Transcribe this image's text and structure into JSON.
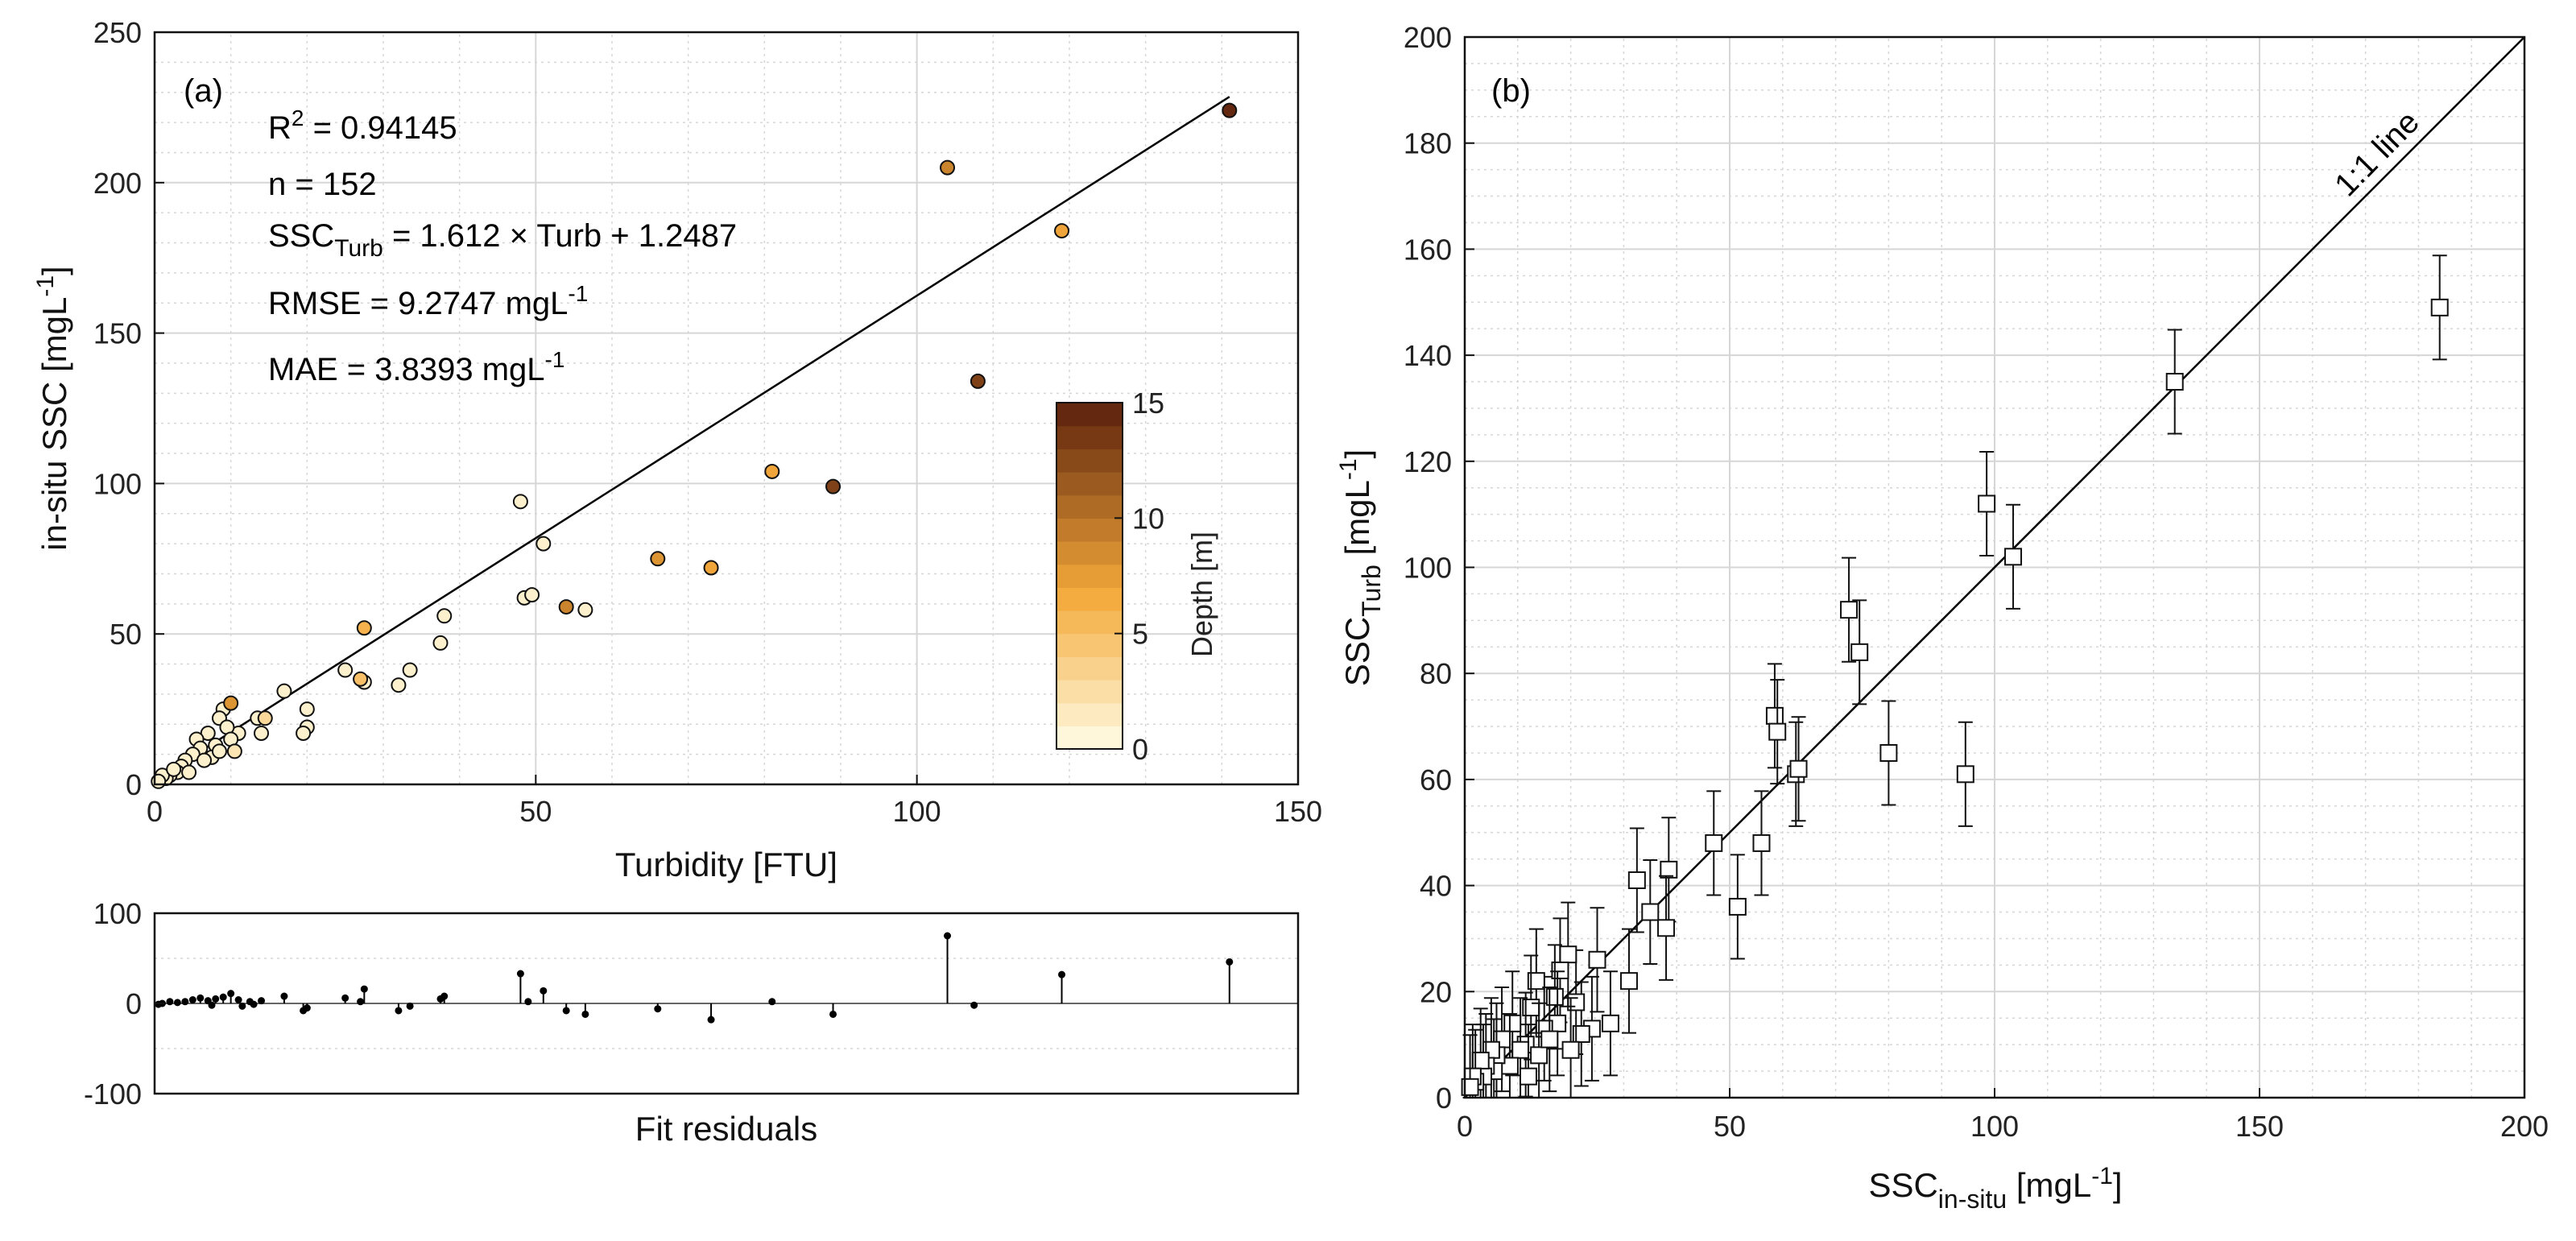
{
  "colors": {
    "depth_low": "#fffde6",
    "depth_mid": "#f4a93a",
    "depth_high": "#5a200c",
    "grid": "#d6d6d6"
  },
  "chart_data": [
    {
      "panel": "(a)",
      "type": "scatter",
      "xlabel": "Turbidity [FTU]",
      "ylabel": "in-situ SSC [mgL⁻¹]",
      "xlim": [
        0,
        150
      ],
      "ylim": [
        0,
        250
      ],
      "xticks": [
        "0",
        "50",
        "100",
        "150"
      ],
      "yticks": [
        "0",
        "50",
        "100",
        "150",
        "200",
        "250"
      ],
      "annotations": {
        "r2": "R² = 0.94145",
        "n": "n = 152",
        "eq": "SSC_Turb = 1.612 × Turb + 1.2487",
        "rmse": "RMSE = 9.2747 mgL⁻¹",
        "mae": "MAE = 3.8393 mgL⁻¹"
      },
      "fit": {
        "slope": 1.612,
        "intercept": 1.2487,
        "x_range": [
          0,
          141
        ]
      },
      "colorbar": {
        "label": "Depth [m]",
        "min": 0,
        "max": 15,
        "ticks": [
          "0",
          "5",
          "10",
          "15"
        ],
        "levels": 15
      },
      "points": [
        {
          "x": 141,
          "y": 224,
          "d": 14.5
        },
        {
          "x": 104,
          "y": 205,
          "d": 9
        },
        {
          "x": 119,
          "y": 184,
          "d": 7
        },
        {
          "x": 108,
          "y": 134,
          "d": 13
        },
        {
          "x": 89,
          "y": 99,
          "d": 13
        },
        {
          "x": 81,
          "y": 104,
          "d": 7
        },
        {
          "x": 73,
          "y": 72,
          "d": 7
        },
        {
          "x": 66,
          "y": 75,
          "d": 8
        },
        {
          "x": 54,
          "y": 59,
          "d": 9
        },
        {
          "x": 56.5,
          "y": 58,
          "d": 1
        },
        {
          "x": 48,
          "y": 94,
          "d": 1
        },
        {
          "x": 51,
          "y": 80,
          "d": 1
        },
        {
          "x": 48.5,
          "y": 62,
          "d": 1
        },
        {
          "x": 49.5,
          "y": 63,
          "d": 1
        },
        {
          "x": 38,
          "y": 56,
          "d": 1
        },
        {
          "x": 37.5,
          "y": 47,
          "d": 1
        },
        {
          "x": 27.5,
          "y": 52,
          "d": 6
        },
        {
          "x": 33.5,
          "y": 38,
          "d": 1
        },
        {
          "x": 32,
          "y": 33,
          "d": 1
        },
        {
          "x": 25,
          "y": 38,
          "d": 1
        },
        {
          "x": 27,
          "y": 35,
          "d": 5
        },
        {
          "x": 27.5,
          "y": 34,
          "d": 1
        },
        {
          "x": 20,
          "y": 25,
          "d": 1
        },
        {
          "x": 20,
          "y": 19,
          "d": 1
        },
        {
          "x": 19.5,
          "y": 17,
          "d": 1
        },
        {
          "x": 17,
          "y": 31,
          "d": 1
        },
        {
          "x": 10,
          "y": 27,
          "d": 8
        },
        {
          "x": 14.5,
          "y": 22,
          "d": 3
        },
        {
          "x": 13.5,
          "y": 22,
          "d": 1
        },
        {
          "x": 14,
          "y": 17,
          "d": 1
        },
        {
          "x": 11,
          "y": 17,
          "d": 1
        },
        {
          "x": 9,
          "y": 25,
          "d": 1
        },
        {
          "x": 8.5,
          "y": 22,
          "d": 1
        },
        {
          "x": 9.5,
          "y": 19,
          "d": 1
        },
        {
          "x": 10,
          "y": 15,
          "d": 1
        },
        {
          "x": 10.5,
          "y": 11,
          "d": 2
        },
        {
          "x": 8,
          "y": 13,
          "d": 1
        },
        {
          "x": 7,
          "y": 17,
          "d": 1
        },
        {
          "x": 5.5,
          "y": 15,
          "d": 1
        },
        {
          "x": 6,
          "y": 12,
          "d": 1
        },
        {
          "x": 5,
          "y": 10,
          "d": 1
        },
        {
          "x": 4,
          "y": 8,
          "d": 1
        },
        {
          "x": 3.5,
          "y": 6,
          "d": 1
        },
        {
          "x": 7.5,
          "y": 9,
          "d": 1
        },
        {
          "x": 6.5,
          "y": 8,
          "d": 1
        },
        {
          "x": 8.5,
          "y": 11,
          "d": 1
        },
        {
          "x": 3,
          "y": 4,
          "d": 1
        },
        {
          "x": 2,
          "y": 3,
          "d": 1
        },
        {
          "x": 1.5,
          "y": 2,
          "d": 1
        },
        {
          "x": 1,
          "y": 3,
          "d": 1
        },
        {
          "x": 0.5,
          "y": 1,
          "d": 1
        },
        {
          "x": 4.5,
          "y": 4,
          "d": 1
        },
        {
          "x": 2.5,
          "y": 5,
          "d": 1
        }
      ]
    },
    {
      "panel": "(a)",
      "type": "stem",
      "xlabel": "Fit residuals",
      "ylim": [
        -100,
        100
      ],
      "yticks": [
        "-100",
        "0",
        "100"
      ],
      "points": [
        {
          "x": 104,
          "r": 75
        },
        {
          "x": 141,
          "r": 46
        },
        {
          "x": 119,
          "r": 32
        },
        {
          "x": 48,
          "r": 33
        },
        {
          "x": 107.5,
          "r": -2
        },
        {
          "x": 89,
          "r": -12
        },
        {
          "x": 81,
          "r": 2
        },
        {
          "x": 73,
          "r": -18
        },
        {
          "x": 66,
          "r": -6
        },
        {
          "x": 56.5,
          "r": -12
        },
        {
          "x": 54,
          "r": -8
        },
        {
          "x": 51,
          "r": 14
        },
        {
          "x": 49,
          "r": 2
        },
        {
          "x": 38,
          "r": 8
        },
        {
          "x": 37.5,
          "r": 5
        },
        {
          "x": 33.5,
          "r": -3
        },
        {
          "x": 32,
          "r": -8
        },
        {
          "x": 27.5,
          "r": 16
        },
        {
          "x": 27,
          "r": 2
        },
        {
          "x": 25,
          "r": 6
        },
        {
          "x": 20,
          "r": -5
        },
        {
          "x": 19.5,
          "r": -8
        },
        {
          "x": 17,
          "r": 8
        },
        {
          "x": 14,
          "r": 3
        },
        {
          "x": 13,
          "r": -1
        },
        {
          "x": 11,
          "r": 4
        },
        {
          "x": 10,
          "r": 11
        },
        {
          "x": 9,
          "r": 7
        },
        {
          "x": 8,
          "r": 5
        },
        {
          "x": 7,
          "r": 3
        },
        {
          "x": 6,
          "r": 6
        },
        {
          "x": 5,
          "r": 4
        },
        {
          "x": 4,
          "r": 2
        },
        {
          "x": 3,
          "r": 1
        },
        {
          "x": 2,
          "r": 2
        },
        {
          "x": 1,
          "r": 0
        },
        {
          "x": 0.5,
          "r": -1
        },
        {
          "x": 11.5,
          "r": -3
        },
        {
          "x": 12.5,
          "r": 2
        },
        {
          "x": 7.5,
          "r": -2
        }
      ]
    },
    {
      "panel": "(b)",
      "type": "scatter",
      "xlabel": "SSC_in-situ [mgL⁻¹]",
      "ylabel": "SSC_Turb [mgL⁻¹]",
      "xlim": [
        0,
        200
      ],
      "ylim": [
        0,
        200
      ],
      "xticks": [
        "0",
        "50",
        "100",
        "150",
        "200"
      ],
      "yticks": [
        "0",
        "20",
        "40",
        "60",
        "80",
        "100",
        "120",
        "140",
        "160",
        "180",
        "200"
      ],
      "one_to_one_label": "1:1 line",
      "error_bar": 9.8,
      "points": [
        {
          "x": 184,
          "y": 149
        },
        {
          "x": 134,
          "y": 135
        },
        {
          "x": 98.5,
          "y": 112
        },
        {
          "x": 103.5,
          "y": 102
        },
        {
          "x": 94.5,
          "y": 61
        },
        {
          "x": 80,
          "y": 65
        },
        {
          "x": 74.5,
          "y": 84
        },
        {
          "x": 72.5,
          "y": 92
        },
        {
          "x": 58.5,
          "y": 72
        },
        {
          "x": 59,
          "y": 69
        },
        {
          "x": 62.5,
          "y": 61
        },
        {
          "x": 63,
          "y": 62
        },
        {
          "x": 56,
          "y": 48
        },
        {
          "x": 51.5,
          "y": 36
        },
        {
          "x": 47,
          "y": 48
        },
        {
          "x": 38.5,
          "y": 43
        },
        {
          "x": 38,
          "y": 32
        },
        {
          "x": 32.5,
          "y": 41
        },
        {
          "x": 35,
          "y": 35
        },
        {
          "x": 31,
          "y": 22
        },
        {
          "x": 27.5,
          "y": 14
        },
        {
          "x": 25,
          "y": 26
        },
        {
          "x": 24,
          "y": 13
        },
        {
          "x": 22,
          "y": 12
        },
        {
          "x": 21,
          "y": 18
        },
        {
          "x": 19.5,
          "y": 27
        },
        {
          "x": 18,
          "y": 24
        },
        {
          "x": 17,
          "y": 19
        },
        {
          "x": 17.5,
          "y": 14
        },
        {
          "x": 15,
          "y": 13
        },
        {
          "x": 13.5,
          "y": 22
        },
        {
          "x": 12.5,
          "y": 17
        },
        {
          "x": 11.5,
          "y": 10
        },
        {
          "x": 10.5,
          "y": 9
        },
        {
          "x": 9,
          "y": 14
        },
        {
          "x": 8.5,
          "y": 6
        },
        {
          "x": 7,
          "y": 11
        },
        {
          "x": 6,
          "y": 8
        },
        {
          "x": 5.5,
          "y": 5
        },
        {
          "x": 5,
          "y": 9
        },
        {
          "x": 4,
          "y": 6
        },
        {
          "x": 3.5,
          "y": 4
        },
        {
          "x": 3,
          "y": 7
        },
        {
          "x": 2,
          "y": 3
        },
        {
          "x": 1.5,
          "y": 4
        },
        {
          "x": 1,
          "y": 2
        },
        {
          "x": 14,
          "y": 8
        },
        {
          "x": 16,
          "y": 11
        },
        {
          "x": 20,
          "y": 9
        },
        {
          "x": 12,
          "y": 4
        }
      ]
    }
  ]
}
